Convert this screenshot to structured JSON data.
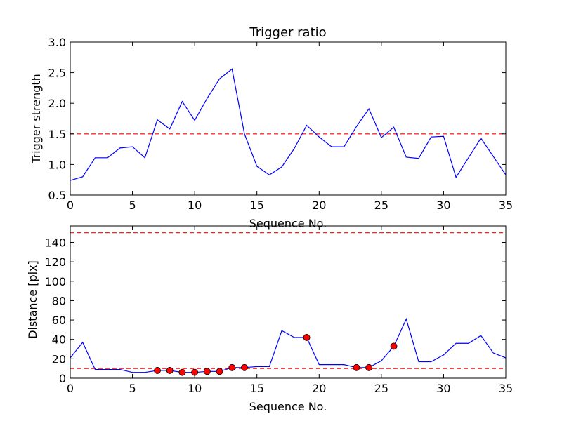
{
  "chart_data": [
    {
      "type": "line",
      "title": "Trigger ratio",
      "xlabel": "Sequence No.",
      "ylabel": "Trigger strength",
      "xlim": [
        0,
        35
      ],
      "ylim": [
        0.5,
        3.0
      ],
      "xticks": [
        0,
        5,
        10,
        15,
        20,
        25,
        30,
        35
      ],
      "yticks": [
        0.5,
        1.0,
        1.5,
        2.0,
        2.5,
        3.0
      ],
      "ytick_labels": [
        "0.5",
        "1.0",
        "1.5",
        "2.0",
        "2.5",
        "3.0"
      ],
      "series": [
        {
          "color": "#0000ff",
          "x": [
            0,
            1,
            2,
            3,
            4,
            5,
            6,
            7,
            8,
            9,
            10,
            11,
            12,
            13,
            14,
            15,
            16,
            17,
            18,
            19,
            20,
            21,
            22,
            23,
            24,
            25,
            26,
            27,
            28,
            29,
            30,
            31,
            32,
            33,
            34,
            35
          ],
          "values": [
            0.74,
            0.8,
            1.11,
            1.11,
            1.27,
            1.29,
            1.11,
            1.73,
            1.58,
            2.03,
            1.72,
            2.08,
            2.4,
            2.56,
            1.5,
            0.97,
            0.83,
            0.96,
            1.26,
            1.64,
            1.45,
            1.29,
            1.29,
            1.62,
            1.91,
            1.44,
            1.61,
            1.12,
            1.1,
            1.45,
            1.46,
            0.79,
            1.11,
            1.43,
            1.13,
            0.83
          ]
        }
      ],
      "thresholds": [
        {
          "y": 1.5,
          "color": "#ff0000",
          "style": "dashed"
        }
      ],
      "grid": false
    },
    {
      "type": "line",
      "title": "",
      "xlabel": "Sequence No.",
      "ylabel": "Distance [pix]",
      "xlim": [
        0,
        35
      ],
      "ylim": [
        0,
        157
      ],
      "xticks": [
        0,
        5,
        10,
        15,
        20,
        25,
        30,
        35
      ],
      "yticks": [
        0,
        20,
        40,
        60,
        80,
        100,
        120,
        140
      ],
      "ytick_labels": [
        "0",
        "20",
        "40",
        "60",
        "80",
        "100",
        "120",
        "140"
      ],
      "series": [
        {
          "color": "#0000ff",
          "x": [
            0,
            1,
            2,
            3,
            4,
            5,
            6,
            7,
            8,
            9,
            10,
            11,
            12,
            13,
            14,
            15,
            16,
            17,
            18,
            19,
            20,
            21,
            22,
            23,
            24,
            25,
            26,
            27,
            28,
            29,
            30,
            31,
            32,
            33,
            34,
            35
          ],
          "values": [
            21,
            37,
            9,
            9,
            9,
            6,
            6,
            8,
            8,
            6,
            6,
            7,
            7,
            11,
            11,
            12,
            12,
            49,
            42,
            42,
            14,
            14,
            14,
            11,
            11,
            18,
            33,
            61,
            17,
            17,
            24,
            36,
            36,
            44,
            26,
            21
          ]
        }
      ],
      "markers": {
        "color": "#ff0000",
        "x": [
          7,
          8,
          9,
          10,
          11,
          12,
          13,
          14,
          19,
          23,
          24,
          26
        ],
        "values": [
          8,
          8,
          6,
          6,
          7,
          7,
          11,
          11,
          42,
          11,
          11,
          33
        ]
      },
      "thresholds": [
        {
          "y": 10,
          "color": "#ff0000",
          "style": "dashed"
        },
        {
          "y": 150,
          "color": "#ff0000",
          "style": "dashed"
        }
      ],
      "grid": false
    }
  ]
}
